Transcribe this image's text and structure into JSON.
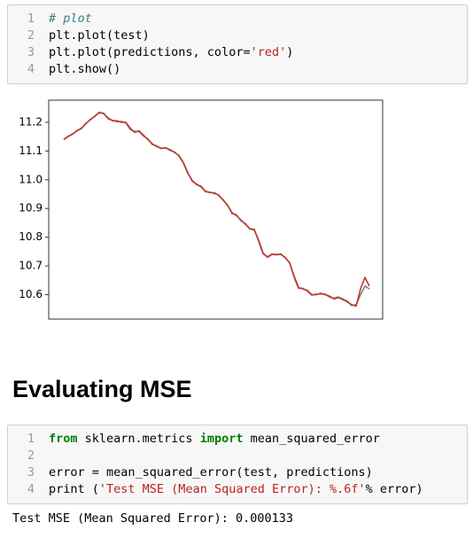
{
  "cells": [
    {
      "lines": [
        {
          "number": 1,
          "tokens": [
            {
              "text": "# plot",
              "style": "comment"
            }
          ]
        },
        {
          "number": 2,
          "tokens": [
            {
              "text": "plt.plot(test)",
              "style": "plain"
            }
          ]
        },
        {
          "number": 3,
          "tokens": [
            {
              "text": "plt.plot(predictions, color=",
              "style": "plain"
            },
            {
              "text": "'red'",
              "style": "string"
            },
            {
              "text": ")",
              "style": "plain"
            }
          ]
        },
        {
          "number": 4,
          "tokens": [
            {
              "text": "plt.show()",
              "style": "plain"
            }
          ]
        }
      ]
    },
    {
      "lines": [
        {
          "number": 1,
          "tokens": [
            {
              "text": "from",
              "style": "keyword"
            },
            {
              "text": " sklearn.metrics ",
              "style": "plain"
            },
            {
              "text": "import",
              "style": "keyword"
            },
            {
              "text": " mean_squared_error",
              "style": "plain"
            }
          ]
        },
        {
          "number": 2,
          "tokens": []
        },
        {
          "number": 3,
          "tokens": [
            {
              "text": "error = mean_squared_error(test, predictions)",
              "style": "plain"
            }
          ]
        },
        {
          "number": 4,
          "tokens": [
            {
              "text": "print (",
              "style": "plain"
            },
            {
              "text": "'Test MSE (Mean Squared Error): %.6f'",
              "style": "string"
            },
            {
              "text": "% error)",
              "style": "plain"
            }
          ]
        }
      ]
    }
  ],
  "heading": "Evaluating MSE",
  "output": "Test MSE (Mean Squared Error): 0.000133",
  "chart_data": {
    "type": "line",
    "series": [
      {
        "name": "test",
        "color": "#7f7f7f",
        "values": [
          11.14,
          11.152,
          11.158,
          11.172,
          11.178,
          11.197,
          11.208,
          11.222,
          11.232,
          11.232,
          11.212,
          11.207,
          11.202,
          11.203,
          11.198,
          11.175,
          11.168,
          11.168,
          11.152,
          11.142,
          11.122,
          11.118,
          11.108,
          11.112,
          11.102,
          11.097,
          11.082,
          11.058,
          11.022,
          10.998,
          10.982,
          10.978,
          10.958,
          10.957,
          10.952,
          10.947,
          10.928,
          10.912,
          10.882,
          10.878,
          10.857,
          10.848,
          10.828,
          10.828,
          10.785,
          10.742,
          10.732,
          10.742,
          10.738,
          10.742,
          10.728,
          10.712,
          10.66,
          10.622,
          10.622,
          10.612,
          10.598,
          10.602,
          10.602,
          10.602,
          10.592,
          10.588,
          10.592,
          10.582,
          10.578,
          10.562,
          10.565,
          10.6,
          10.63,
          10.62
        ]
      },
      {
        "name": "predictions",
        "color": "#c0392b",
        "values": [
          11.14,
          11.15,
          11.16,
          11.17,
          11.18,
          11.195,
          11.21,
          11.22,
          11.235,
          11.23,
          11.215,
          11.205,
          11.205,
          11.2,
          11.2,
          11.18,
          11.165,
          11.17,
          11.155,
          11.14,
          11.125,
          11.115,
          11.11,
          11.11,
          11.105,
          11.095,
          11.085,
          11.06,
          11.025,
          10.995,
          10.985,
          10.975,
          10.96,
          10.955,
          10.955,
          10.945,
          10.93,
          10.91,
          10.885,
          10.875,
          10.86,
          10.845,
          10.83,
          10.825,
          10.79,
          10.745,
          10.73,
          10.74,
          10.74,
          10.74,
          10.73,
          10.71,
          10.665,
          10.625,
          10.62,
          10.615,
          10.6,
          10.6,
          10.605,
          10.6,
          10.595,
          10.585,
          10.59,
          10.585,
          10.575,
          10.565,
          10.56,
          10.62,
          10.66,
          10.63
        ]
      }
    ],
    "xlim": [
      -3.4,
      72.0
    ],
    "ylim": [
      10.515,
      11.277
    ],
    "yticks": [
      {
        "value": 10.6,
        "label": "10.6"
      },
      {
        "value": 10.7,
        "label": "10.7"
      },
      {
        "value": 10.8,
        "label": "10.8"
      },
      {
        "value": 10.9,
        "label": "10.9"
      },
      {
        "value": 11.0,
        "label": "11.0"
      },
      {
        "value": 11.1,
        "label": "11.1"
      },
      {
        "value": 11.2,
        "label": "11.2"
      }
    ]
  }
}
